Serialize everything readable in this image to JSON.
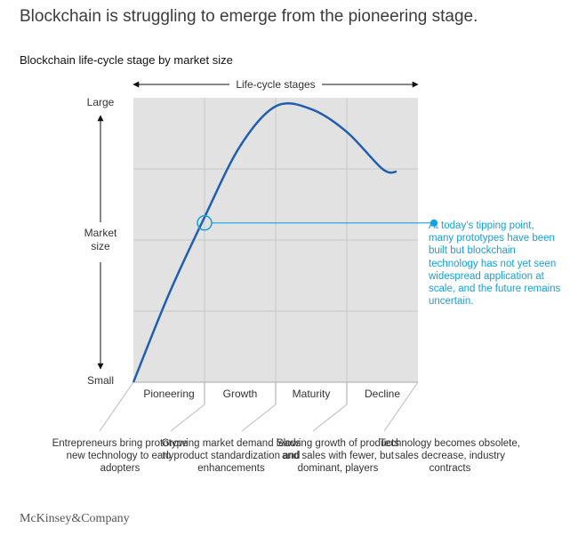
{
  "headline": "Blockchain is struggling to emerge from the pioneering stage.",
  "chart_data": {
    "type": "line",
    "title": "Blockchain life-cycle stage by market size",
    "x_axis_label": "Life-cycle stages",
    "y_axis_label": "Market size",
    "y_top_label": "Large",
    "y_bottom_label": "Small",
    "categories": [
      "Pioneering",
      "Growth",
      "Maturity",
      "Decline"
    ],
    "grid": true,
    "series": [
      {
        "color": "#1f5fb0",
        "x": [
          0,
          0.5,
          1,
          1.5,
          2,
          2.5,
          3,
          3.5,
          3.7
        ],
        "y": [
          0,
          0.31,
          0.58,
          0.83,
          0.97,
          0.96,
          0.88,
          0.75,
          0.74
        ]
      }
    ],
    "marker": {
      "x": 1,
      "y": 0.56
    },
    "annotation": "At today’s tipping point, many prototypes have been built but blockchain technology has not yet seen widespread application at scale, and the future remains uncertain.",
    "stage_descriptions": [
      "Entrepreneurs bring prototype new technology to early adopters",
      "Growing market demand leads to product standardization and enhancements",
      "Slowing growth of products and sales with fewer, but dominant, players",
      "Technology becomes obsolete, sales decrease, industry contracts"
    ],
    "colors": {
      "curve": "#1f5fb0",
      "callout": "#14a0dc",
      "plot_bg": "#e2e2e2"
    }
  },
  "footer": {
    "logo": "McKinsey&Company"
  }
}
